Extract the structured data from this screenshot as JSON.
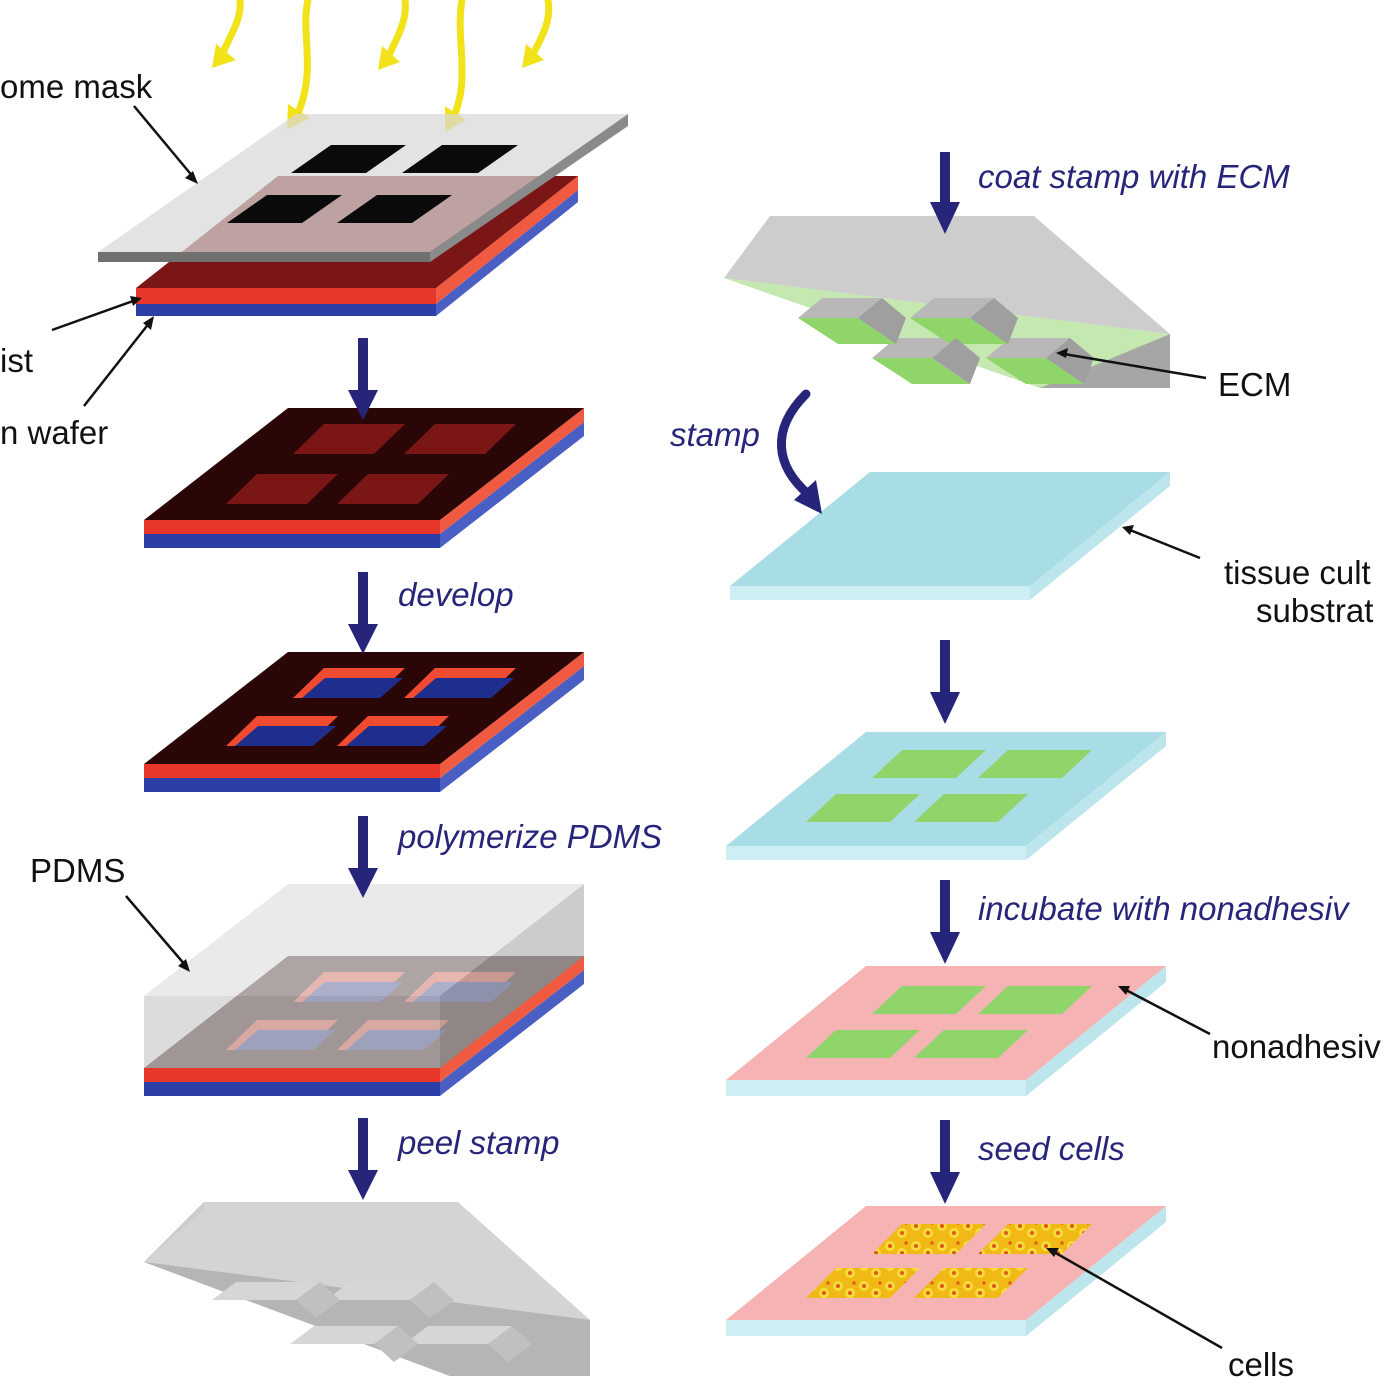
{
  "labels": {
    "chrome_mask": "ome mask",
    "photoresist": "ist",
    "silicon_wafer": "n wafer",
    "pdms": "PDMS",
    "ecm": "ECM",
    "tissue_culture_line1": "tissue cult",
    "tissue_culture_line2": "substrat",
    "nonadhesive": "nonadhesiv",
    "cells": "cells"
  },
  "steps": {
    "develop": "develop",
    "polymerize": "polymerize PDMS",
    "peel": "peel stamp",
    "coat": "coat stamp with ECM",
    "stamp": "stamp",
    "incubate": "incubate with nonadhesiv",
    "seed": "seed cells"
  },
  "colors": {
    "uv_light": "#f2e21a",
    "photoresist": "#e8362a",
    "photoresist_dark": "#3a0a0a",
    "silicon_wafer": "#2c3fa6",
    "pdms": "#c4c4c4",
    "ecm": "#8fd56a",
    "substrate": "#a8dde6",
    "nonadhesive": "#f5b3b3",
    "cells": "#f0c419",
    "arrow": "#27257a"
  }
}
